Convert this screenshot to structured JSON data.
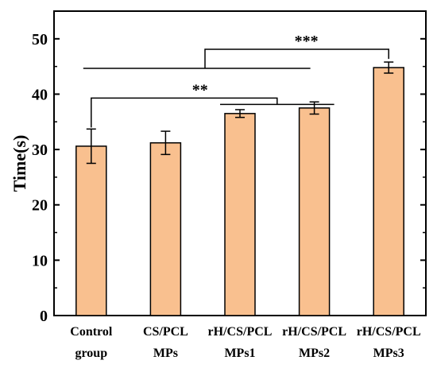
{
  "chart_data": {
    "type": "bar",
    "categories": [
      [
        "Control",
        "group"
      ],
      [
        "CS/PCL",
        "MPs"
      ],
      [
        "rH/CS/PCL",
        "MPs1"
      ],
      [
        "rH/CS/PCL",
        "MPs2"
      ],
      [
        "rH/CS/PCL",
        "MPs3"
      ]
    ],
    "values": [
      30.6,
      31.2,
      36.5,
      37.5,
      44.8
    ],
    "errors": [
      3.1,
      2.1,
      0.7,
      1.1,
      1.0
    ],
    "ylabel": "Time(s)",
    "ylim": [
      0,
      55
    ],
    "yticks": [
      0,
      10,
      20,
      30,
      40,
      50
    ],
    "grid": false,
    "colors": {
      "bar_fill": "#F9C08F",
      "bar_stroke": "#000000",
      "axis": "#000000"
    },
    "significance": [
      {
        "label": "**",
        "from": 0,
        "to_group": [
          2,
          3
        ],
        "y": 39.3
      },
      {
        "label": "***",
        "from_group": [
          0,
          3
        ],
        "to": 4,
        "y": 48.1
      }
    ]
  }
}
